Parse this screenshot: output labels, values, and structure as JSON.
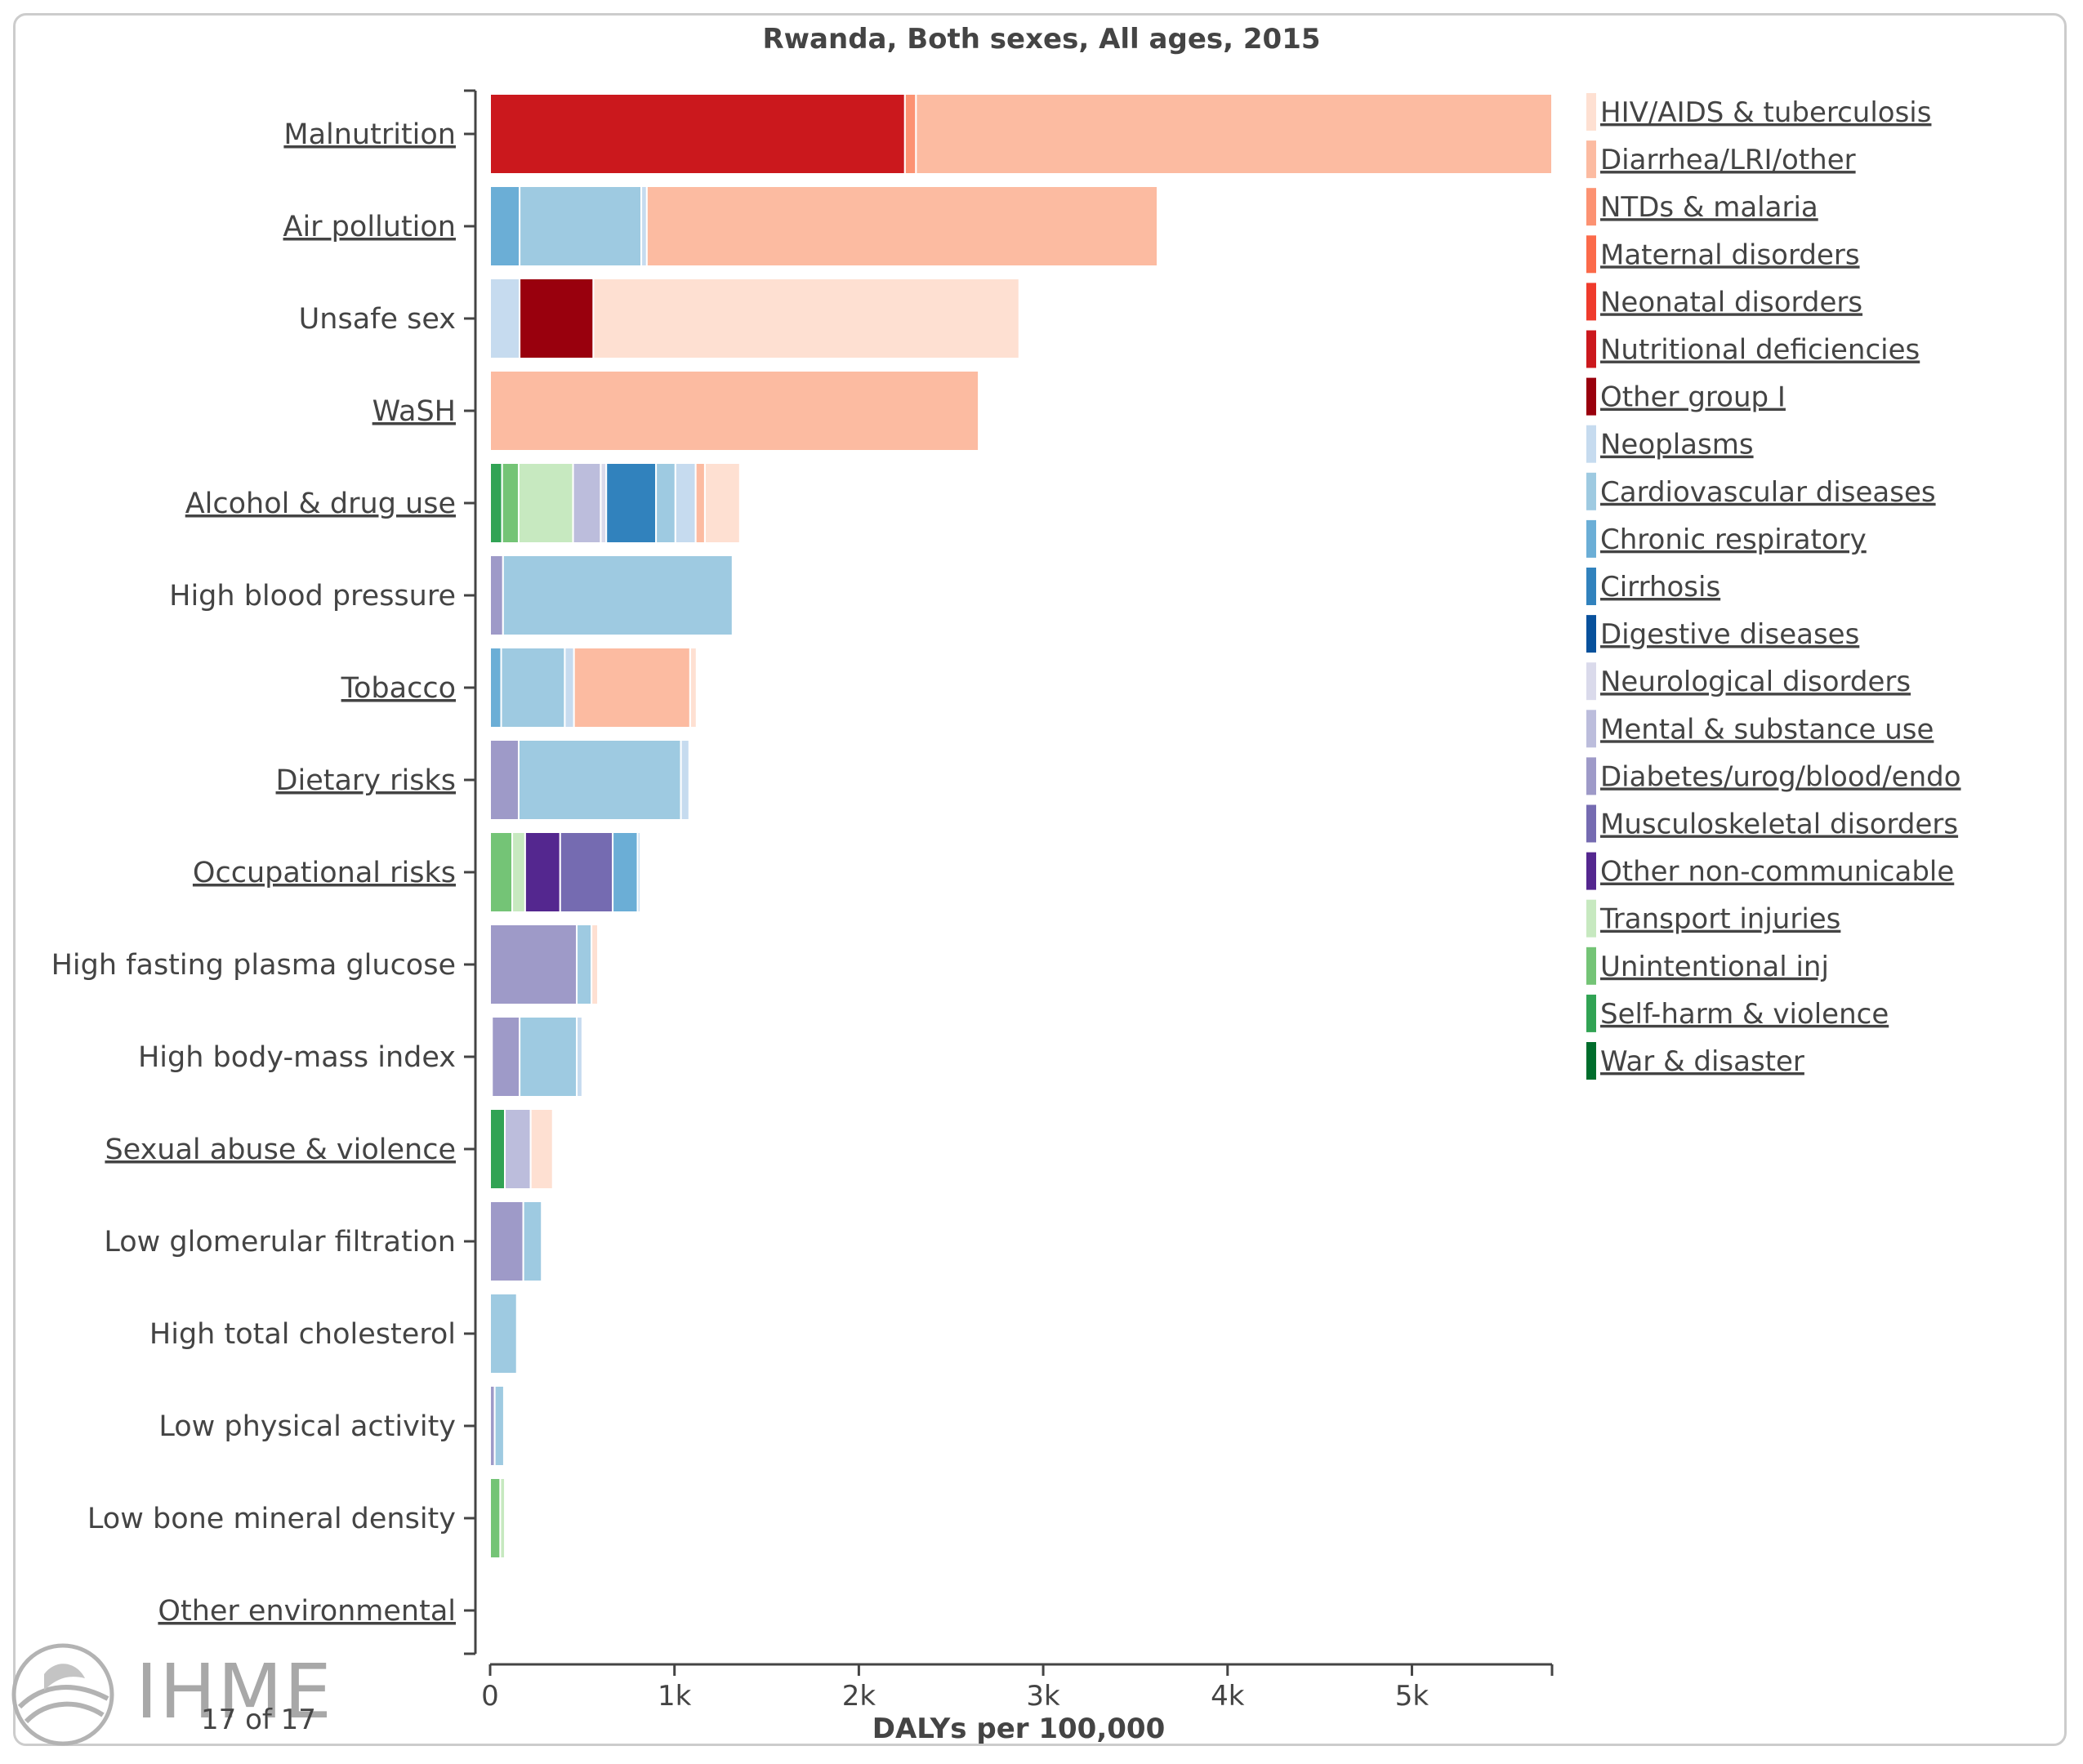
{
  "chart_data": {
    "type": "bar",
    "orientation": "horizontal",
    "stacked": true,
    "title": "Rwanda, Both sexes, All ages, 2015",
    "xlabel": "DALYs per 100,000",
    "ylabel": "",
    "xlim": [
      0,
      5760
    ],
    "xticks": [
      {
        "value": 0,
        "label": "0"
      },
      {
        "value": 1000,
        "label": "1k"
      },
      {
        "value": 2000,
        "label": "2k"
      },
      {
        "value": 3000,
        "label": "3k"
      },
      {
        "value": 4000,
        "label": "4k"
      },
      {
        "value": 5000,
        "label": "5k"
      }
    ],
    "grid": false,
    "legend_position": "right",
    "legend": [
      {
        "name": "HIV/AIDS & tuberculosis",
        "color": "#fee0d2"
      },
      {
        "name": "Diarrhea/LRI/other",
        "color": "#fcbba1"
      },
      {
        "name": "NTDs & malaria",
        "color": "#fc9272"
      },
      {
        "name": "Maternal disorders",
        "color": "#fb6a4a"
      },
      {
        "name": "Neonatal disorders",
        "color": "#ef3b2c"
      },
      {
        "name": "Nutritional deficiencies",
        "color": "#cb181d"
      },
      {
        "name": "Other group I",
        "color": "#99000d"
      },
      {
        "name": "Neoplasms",
        "color": "#c6dbef"
      },
      {
        "name": "Cardiovascular diseases",
        "color": "#9ecae1"
      },
      {
        "name": "Chronic respiratory",
        "color": "#6baed6"
      },
      {
        "name": "Cirrhosis",
        "color": "#3182bd"
      },
      {
        "name": "Digestive diseases",
        "color": "#08519c"
      },
      {
        "name": "Neurological disorders",
        "color": "#dadaeb"
      },
      {
        "name": "Mental & substance use",
        "color": "#bcbddc"
      },
      {
        "name": "Diabetes/urog/blood/endo",
        "color": "#9e9ac8"
      },
      {
        "name": "Musculoskeletal disorders",
        "color": "#756bb1"
      },
      {
        "name": "Other non-communicable",
        "color": "#54278f"
      },
      {
        "name": "Transport injuries",
        "color": "#c7e9c0"
      },
      {
        "name": "Unintentional inj",
        "color": "#74c476"
      },
      {
        "name": "Self-harm & violence",
        "color": "#31a354"
      },
      {
        "name": "War & disaster",
        "color": "#006d2c"
      }
    ],
    "categories": [
      {
        "label": "Malnutrition",
        "linked": true,
        "segments": [
          {
            "cause": "Nutritional deficiencies",
            "value": 2250
          },
          {
            "cause": "NTDs & malaria",
            "value": 60
          },
          {
            "cause": "Diarrhea/LRI/other",
            "value": 3450
          }
        ]
      },
      {
        "label": "Air pollution",
        "linked": true,
        "segments": [
          {
            "cause": "Chronic respiratory",
            "value": 160
          },
          {
            "cause": "Cardiovascular diseases",
            "value": 660
          },
          {
            "cause": "Neoplasms",
            "value": 30
          },
          {
            "cause": "Diarrhea/LRI/other",
            "value": 2770
          }
        ]
      },
      {
        "label": "Unsafe sex",
        "linked": false,
        "segments": [
          {
            "cause": "Neoplasms",
            "value": 160
          },
          {
            "cause": "Other group I",
            "value": 400
          },
          {
            "cause": "HIV/AIDS & tuberculosis",
            "value": 2310
          }
        ]
      },
      {
        "label": "WaSH",
        "linked": true,
        "segments": [
          {
            "cause": "Diarrhea/LRI/other",
            "value": 2650
          }
        ]
      },
      {
        "label": "Alcohol & drug use",
        "linked": true,
        "segments": [
          {
            "cause": "Self-harm & violence",
            "value": 65
          },
          {
            "cause": "Unintentional inj",
            "value": 90
          },
          {
            "cause": "Transport injuries",
            "value": 295
          },
          {
            "cause": "Mental & substance use",
            "value": 150
          },
          {
            "cause": "Neurological disorders",
            "value": 30
          },
          {
            "cause": "Cirrhosis",
            "value": 270
          },
          {
            "cause": "Cardiovascular diseases",
            "value": 105
          },
          {
            "cause": "Neoplasms",
            "value": 110
          },
          {
            "cause": "Diarrhea/LRI/other",
            "value": 50
          },
          {
            "cause": "HIV/AIDS & tuberculosis",
            "value": 190
          }
        ]
      },
      {
        "label": "High blood pressure",
        "linked": false,
        "segments": [
          {
            "cause": "Diabetes/urog/blood/endo",
            "value": 70
          },
          {
            "cause": "Cardiovascular diseases",
            "value": 1245
          }
        ]
      },
      {
        "label": "Tobacco",
        "linked": true,
        "segments": [
          {
            "cause": "Chronic respiratory",
            "value": 60
          },
          {
            "cause": "Cardiovascular diseases",
            "value": 345
          },
          {
            "cause": "Neoplasms",
            "value": 50
          },
          {
            "cause": "Diarrhea/LRI/other",
            "value": 630
          },
          {
            "cause": "HIV/AIDS & tuberculosis",
            "value": 35
          }
        ]
      },
      {
        "label": "Dietary risks",
        "linked": true,
        "segments": [
          {
            "cause": "Diabetes/urog/blood/endo",
            "value": 155
          },
          {
            "cause": "Cardiovascular diseases",
            "value": 880
          },
          {
            "cause": "Neoplasms",
            "value": 45
          }
        ]
      },
      {
        "label": "Occupational risks",
        "linked": true,
        "segments": [
          {
            "cause": "Unintentional inj",
            "value": 120
          },
          {
            "cause": "Transport injuries",
            "value": 70
          },
          {
            "cause": "Other non-communicable",
            "value": 190
          },
          {
            "cause": "Musculoskeletal disorders",
            "value": 285
          },
          {
            "cause": "Chronic respiratory",
            "value": 135
          },
          {
            "cause": "Neoplasms",
            "value": 15
          }
        ]
      },
      {
        "label": "High fasting plasma glucose",
        "linked": false,
        "segments": [
          {
            "cause": "Diabetes/urog/blood/endo",
            "value": 470
          },
          {
            "cause": "Cardiovascular diseases",
            "value": 80
          },
          {
            "cause": "HIV/AIDS & tuberculosis",
            "value": 35
          }
        ]
      },
      {
        "label": "High body-mass index",
        "linked": false,
        "segments": [
          {
            "cause": "Neurological disorders",
            "value": 10
          },
          {
            "cause": "Diabetes/urog/blood/endo",
            "value": 150
          },
          {
            "cause": "Cardiovascular diseases",
            "value": 310
          },
          {
            "cause": "Neoplasms",
            "value": 30
          }
        ]
      },
      {
        "label": "Sexual abuse & violence",
        "linked": true,
        "segments": [
          {
            "cause": "Self-harm & violence",
            "value": 80
          },
          {
            "cause": "Mental & substance use",
            "value": 140
          },
          {
            "cause": "HIV/AIDS & tuberculosis",
            "value": 120
          }
        ]
      },
      {
        "label": "Low glomerular filtration",
        "linked": false,
        "segments": [
          {
            "cause": "Diabetes/urog/blood/endo",
            "value": 180
          },
          {
            "cause": "Cardiovascular diseases",
            "value": 100
          }
        ]
      },
      {
        "label": "High total cholesterol",
        "linked": false,
        "segments": [
          {
            "cause": "Cardiovascular diseases",
            "value": 145
          }
        ]
      },
      {
        "label": "Low physical activity",
        "linked": false,
        "segments": [
          {
            "cause": "Diabetes/urog/blood/endo",
            "value": 25
          },
          {
            "cause": "Cardiovascular diseases",
            "value": 50
          }
        ]
      },
      {
        "label": "Low bone mineral density",
        "linked": false,
        "segments": [
          {
            "cause": "Unintentional inj",
            "value": 55
          },
          {
            "cause": "Transport injuries",
            "value": 25
          }
        ]
      },
      {
        "label": "Other environmental",
        "linked": true,
        "segments": []
      }
    ]
  },
  "footer": {
    "logo_text": "IHME",
    "page_indicator": "17 of 17"
  }
}
